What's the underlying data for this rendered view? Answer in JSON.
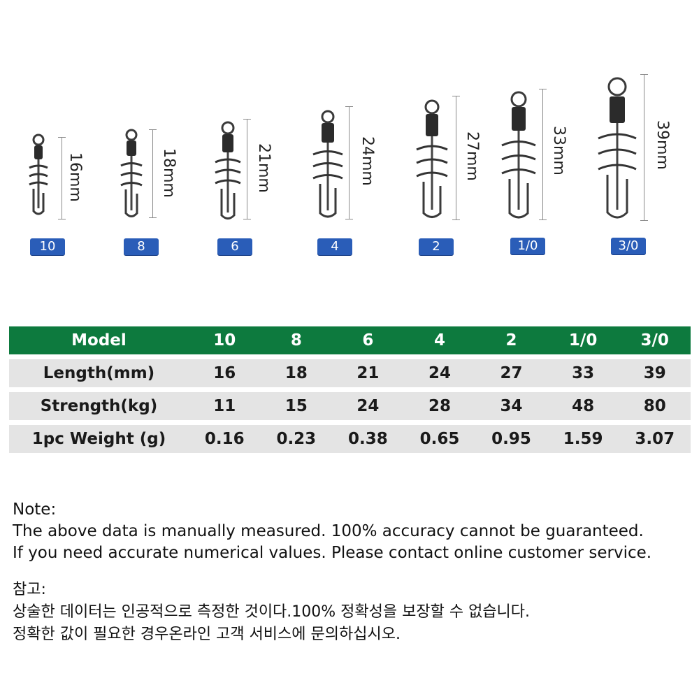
{
  "products": [
    {
      "badge": "10",
      "length_label": "16mm"
    },
    {
      "badge": "8",
      "length_label": "18mm"
    },
    {
      "badge": "6",
      "length_label": "21mm"
    },
    {
      "badge": "4",
      "length_label": "24mm"
    },
    {
      "badge": "2",
      "length_label": "27mm"
    },
    {
      "badge": "1/0",
      "length_label": "33mm"
    },
    {
      "badge": "3/0",
      "length_label": "39mm"
    }
  ],
  "table": {
    "header": {
      "label": "Model",
      "values": [
        "10",
        "8",
        "6",
        "4",
        "2",
        "1/0",
        "3/0"
      ]
    },
    "rows": [
      {
        "label": "Length(mm)",
        "values": [
          "16",
          "18",
          "21",
          "24",
          "27",
          "33",
          "39"
        ]
      },
      {
        "label": "Strength(kg)",
        "values": [
          "11",
          "15",
          "24",
          "28",
          "34",
          "48",
          "80"
        ]
      },
      {
        "label": "1pc Weight (g)",
        "values": [
          "0.16",
          "0.23",
          "0.38",
          "0.65",
          "0.95",
          "1.59",
          "3.07"
        ]
      }
    ]
  },
  "notes": {
    "en": [
      "Note:",
      "The above data is manually measured. 100% accuracy cannot be guaranteed.",
      "If you need accurate numerical values. Please contact online customer service."
    ],
    "ko": [
      "참고:",
      "상술한 데이터는 인공적으로 측정한 것이다.100% 정확성을 보장할 수 없습니다.",
      "정확한 값이 필요한 경우온라인 고객 서비스에 문의하십시오."
    ]
  },
  "colors": {
    "header_green": "#0d7a3e",
    "row_gray": "#e4e4e4",
    "badge_blue": "#2a5db8"
  }
}
